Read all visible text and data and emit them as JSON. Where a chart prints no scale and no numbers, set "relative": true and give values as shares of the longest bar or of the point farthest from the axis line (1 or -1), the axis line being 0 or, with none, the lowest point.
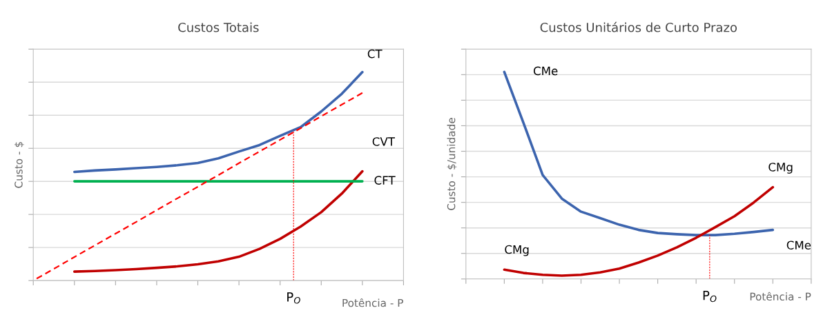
{
  "chart_data": [
    {
      "type": "line",
      "title": "Custos Totais",
      "xlabel": "Potência - P",
      "ylabel": "Custo - $",
      "relative": true,
      "grid": "y",
      "legend": false,
      "tick_labels": false,
      "categories": [
        null,
        null,
        null,
        null,
        null,
        null,
        null,
        null,
        null,
        null,
        null,
        null,
        null,
        null,
        null,
        null,
        null,
        null,
        null
      ],
      "series": [
        {
          "name": "CT",
          "color": "#3c64ae",
          "values": [
            null,
            null,
            0.521,
            0.528,
            0.533,
            0.539,
            0.545,
            0.553,
            0.564,
            0.586,
            0.619,
            0.65,
            0.694,
            0.736,
            0.811,
            0.896,
            1.0,
            null,
            null
          ]
        },
        {
          "name": "CVT",
          "color": "#c00000",
          "values": [
            null,
            null,
            0.043,
            0.046,
            0.05,
            0.055,
            0.061,
            0.068,
            0.078,
            0.092,
            0.114,
            0.152,
            0.2,
            0.259,
            0.328,
            0.417,
            0.524,
            null,
            null
          ]
        },
        {
          "name": "CFT",
          "color": "#00b050",
          "values": [
            null,
            null,
            0.476,
            0.476,
            0.476,
            0.476,
            0.476,
            0.476,
            0.476,
            0.476,
            0.476,
            0.476,
            0.476,
            0.476,
            0.476,
            0.476,
            0.476,
            null,
            null
          ]
        },
        {
          "color": "#ff0000",
          "line_style": "dashed",
          "values": [
            0,
            0.056,
            0.113,
            0.169,
            0.225,
            0.281,
            0.338,
            0.394,
            0.45,
            0.506,
            0.563,
            0.619,
            0.675,
            0.731,
            0.788,
            0.844,
            0.9,
            null,
            null
          ]
        }
      ],
      "annotations": [
        "P$_{O}$"
      ]
    },
    {
      "type": "line",
      "title": "Custos Unitários de Curto Prazo",
      "xlabel": "Potência - P",
      "ylabel": "Custo - $/unidade",
      "relative": true,
      "grid": "y",
      "legend": false,
      "tick_labels": false,
      "categories": [
        null,
        null,
        null,
        null,
        null,
        null,
        null,
        null,
        null,
        null,
        null,
        null,
        null,
        null,
        null,
        null,
        null,
        null,
        null
      ],
      "series": [
        {
          "name": "CMe",
          "color": "#3c64ae",
          "values": [
            null,
            null,
            1.0,
            0.754,
            0.502,
            0.388,
            0.325,
            0.294,
            0.262,
            0.237,
            0.222,
            0.216,
            0.212,
            0.212,
            0.218,
            0.227,
            0.237,
            null,
            null
          ]
        },
        {
          "name": "CMg",
          "color": "#c00000",
          "values": [
            null,
            null,
            0.045,
            0.029,
            0.02,
            0.016,
            0.02,
            0.032,
            0.05,
            0.079,
            0.113,
            0.153,
            0.199,
            0.25,
            0.303,
            0.369,
            0.443,
            null,
            null
          ]
        }
      ],
      "annotations": [
        "P$_{O}$"
      ]
    }
  ]
}
